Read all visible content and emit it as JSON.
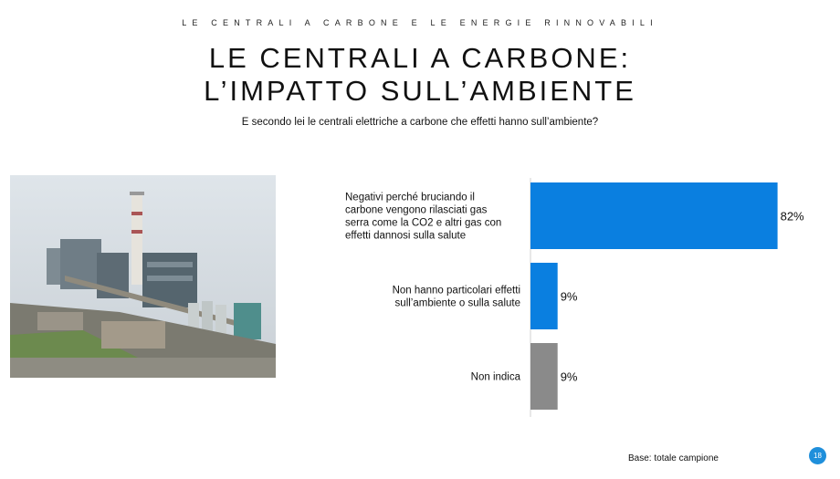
{
  "header": {
    "kicker": "LE CENTRALI A CARBONE E LE ENERGIE RINNOVABILI",
    "title_line1": "LE CENTRALI A CARBONE:",
    "title_line2": "L’IMPATTO SULL’AMBIENTE",
    "question": "E secondo lei le centrali elettriche a carbone che effetti hanno sull’ambiente?"
  },
  "footer": {
    "base": "Base: totale campione",
    "page": "18"
  },
  "colors": {
    "blue": "#0a7fe0",
    "gray": "#8a8a8a",
    "badge": "#1f8fdb"
  },
  "chart_data": {
    "type": "bar",
    "orientation": "horizontal",
    "categories": [
      "Negativi perché bruciando il carbone vengono rilasciati gas serra come la CO2 e altri gas con effetti dannosi sulla salute",
      "Non hanno particolari effetti sull’ambiente o sulla salute",
      "Non indica"
    ],
    "category_lines": [
      [
        "Negativi perché bruciando il",
        "carbone vengono rilasciati gas",
        "serra come la CO2 e altri gas con",
        "effetti dannosi sulla salute"
      ],
      [
        "Non hanno particolari effetti",
        "sull’ambiente o sulla salute"
      ],
      [
        "Non indica"
      ]
    ],
    "values": [
      82,
      9,
      9
    ],
    "value_labels": [
      "82%",
      "9%",
      "9%"
    ],
    "bar_colors": [
      "#0a7fe0",
      "#0a7fe0",
      "#8a8a8a"
    ],
    "xlim": [
      0,
      100
    ],
    "grid": false,
    "legend": "none"
  }
}
